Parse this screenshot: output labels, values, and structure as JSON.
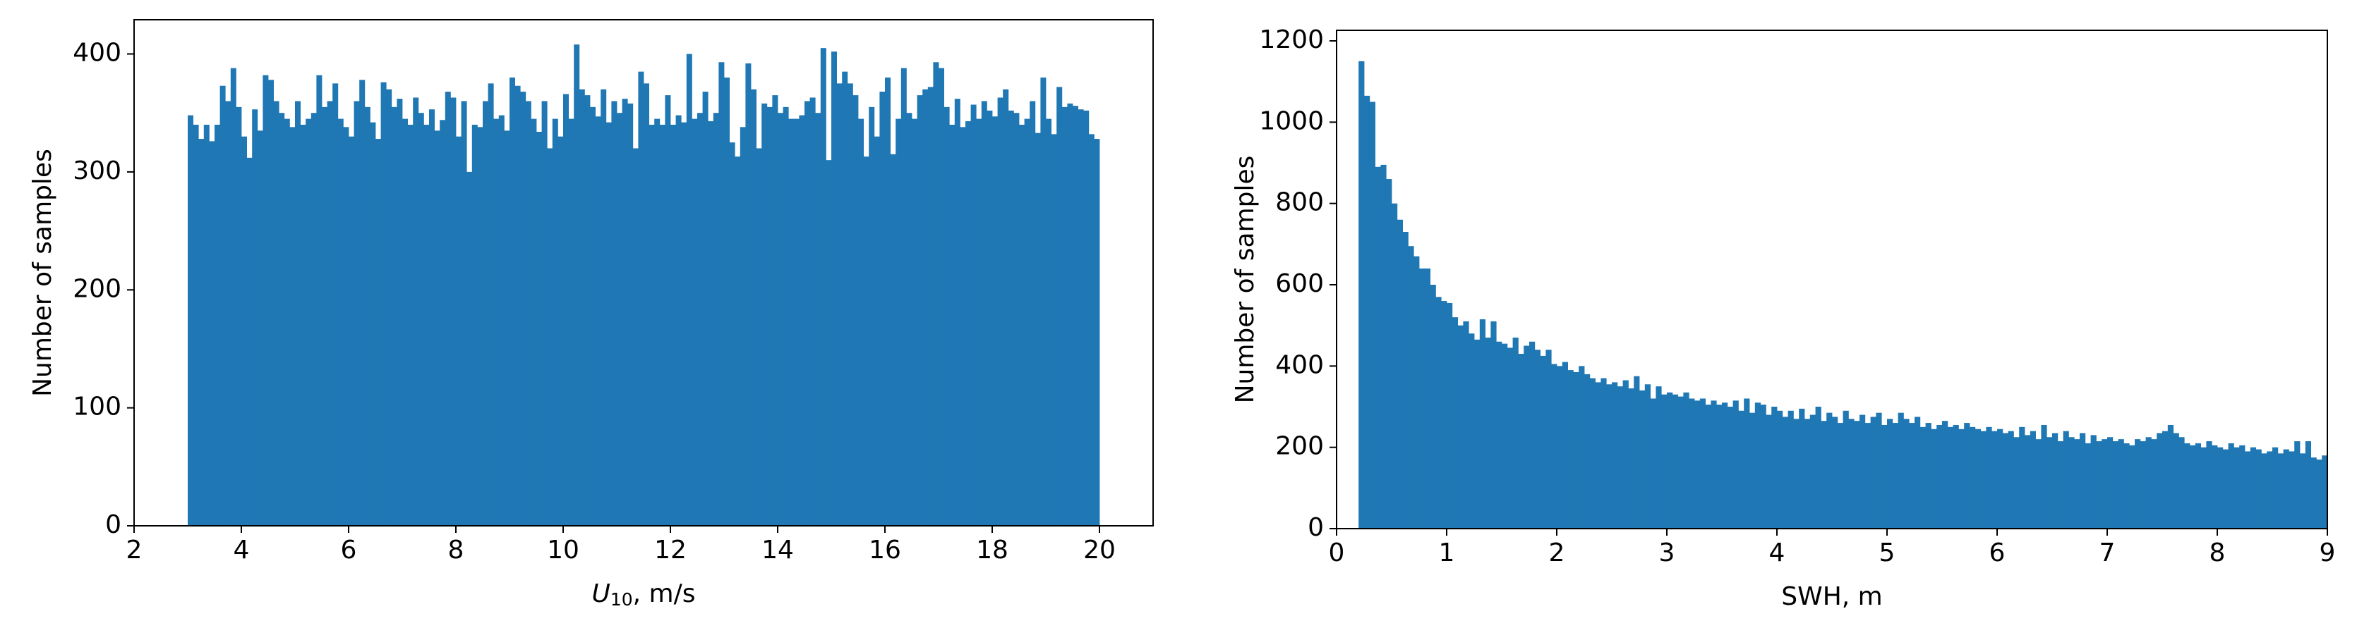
{
  "chart_data": [
    {
      "type": "histogram",
      "xlabel": [
        "U",
        "10",
        ", m/s"
      ],
      "ylabel": "Number of samples",
      "color": "#1f77b4",
      "xlim": [
        2,
        21
      ],
      "ylim": [
        0,
        429
      ],
      "xticks": [
        2,
        4,
        6,
        8,
        10,
        12,
        14,
        16,
        18,
        20
      ],
      "yticks": [
        0,
        100,
        200,
        300,
        400
      ],
      "bins": [
        3,
        3.1,
        3.2,
        3.3,
        3.4,
        3.5,
        3.6,
        3.7,
        3.8,
        3.9,
        4,
        4.1,
        4.2,
        4.3,
        4.4,
        4.5,
        4.6,
        4.7,
        4.8,
        4.9,
        5,
        5.1,
        5.2,
        5.3,
        5.4,
        5.5,
        5.6,
        5.7,
        5.8,
        5.9,
        6,
        6.1,
        6.2,
        6.3,
        6.4,
        6.5,
        6.6,
        6.7,
        6.8,
        6.9,
        7,
        7.1,
        7.2,
        7.3,
        7.4,
        7.5,
        7.6,
        7.7,
        7.8,
        7.9,
        8,
        8.1,
        8.2,
        8.3,
        8.4,
        8.5,
        8.6,
        8.7,
        8.8,
        8.9,
        9,
        9.1,
        9.2,
        9.3,
        9.4,
        9.5,
        9.6,
        9.7,
        9.8,
        9.9,
        10,
        10.1,
        10.2,
        10.3,
        10.4,
        10.5,
        10.6,
        10.7,
        10.8,
        10.9,
        11,
        11.1,
        11.2,
        11.3,
        11.4,
        11.5,
        11.6,
        11.7,
        11.8,
        11.9,
        12,
        12.1,
        12.2,
        12.3,
        12.4,
        12.5,
        12.6,
        12.7,
        12.8,
        12.9,
        13,
        13.1,
        13.2,
        13.3,
        13.4,
        13.5,
        13.6,
        13.7,
        13.8,
        13.9,
        14,
        14.1,
        14.2,
        14.3,
        14.4,
        14.5,
        14.6,
        14.7,
        14.8,
        14.9,
        15,
        15.1,
        15.2,
        15.3,
        15.4,
        15.5,
        15.6,
        15.7,
        15.8,
        15.9,
        16,
        16.1,
        16.2,
        16.3,
        16.4,
        16.5,
        16.6,
        16.7,
        16.8,
        16.9,
        17,
        17.1,
        17.2,
        17.3,
        17.4,
        17.5,
        17.6,
        17.7,
        17.8,
        17.9,
        18,
        18.1,
        18.2,
        18.3,
        18.4,
        18.5,
        18.6,
        18.7,
        18.8,
        18.9,
        19,
        19.1,
        19.2,
        19.3,
        19.4,
        19.5,
        19.6,
        19.7,
        19.8,
        19.9,
        20
      ],
      "values": [
        348,
        340,
        328,
        340,
        326,
        340,
        373,
        360,
        388,
        355,
        330,
        312,
        353,
        335,
        382,
        378,
        360,
        350,
        345,
        338,
        360,
        340,
        345,
        350,
        382,
        355,
        360,
        375,
        345,
        338,
        330,
        360,
        378,
        355,
        342,
        328,
        376,
        370,
        355,
        362,
        345,
        340,
        363,
        350,
        340,
        353,
        335,
        344,
        368,
        363,
        330,
        360,
        300,
        340,
        338,
        360,
        375,
        345,
        348,
        335,
        380,
        373,
        368,
        360,
        345,
        334,
        360,
        320,
        345,
        330,
        366,
        345,
        408,
        370,
        365,
        355,
        347,
        370,
        342,
        360,
        350,
        362,
        358,
        320,
        385,
        375,
        340,
        345,
        340,
        365,
        340,
        348,
        342,
        400,
        345,
        350,
        368,
        343,
        350,
        393,
        380,
        325,
        313,
        338,
        392,
        370,
        320,
        358,
        355,
        365,
        350,
        355,
        345,
        345,
        348,
        360,
        363,
        350,
        405,
        310,
        402,
        375,
        385,
        375,
        365,
        345,
        313,
        355,
        330,
        368,
        380,
        315,
        345,
        388,
        350,
        345,
        365,
        370,
        372,
        393,
        388,
        355,
        340,
        362,
        338,
        343,
        357,
        345,
        360,
        352,
        347,
        363,
        370,
        352,
        350,
        340,
        345,
        360,
        333,
        380,
        345,
        332,
        372,
        355,
        358,
        356,
        353,
        352,
        332,
        328
      ]
    },
    {
      "type": "histogram",
      "xlabel": [
        "SWH, m"
      ],
      "ylabel": "Number of samples",
      "color": "#1f77b4",
      "xlim": [
        0,
        9
      ],
      "ylim": [
        0,
        1226
      ],
      "xticks": [
        0,
        1,
        2,
        3,
        4,
        5,
        6,
        7,
        8,
        9
      ],
      "yticks": [
        0,
        200,
        400,
        600,
        800,
        1000,
        1200
      ],
      "bins": [
        0.2,
        0.25,
        0.3,
        0.35,
        0.4,
        0.45,
        0.5,
        0.55,
        0.6,
        0.65,
        0.7,
        0.75,
        0.8,
        0.85,
        0.9,
        0.95,
        1,
        1.05,
        1.1,
        1.15,
        1.2,
        1.25,
        1.3,
        1.35,
        1.4,
        1.45,
        1.5,
        1.55,
        1.6,
        1.65,
        1.7,
        1.75,
        1.8,
        1.85,
        1.9,
        1.95,
        2,
        2.05,
        2.1,
        2.15,
        2.2,
        2.25,
        2.3,
        2.35,
        2.4,
        2.45,
        2.5,
        2.55,
        2.6,
        2.65,
        2.7,
        2.75,
        2.8,
        2.85,
        2.9,
        2.95,
        3,
        3.05,
        3.1,
        3.15,
        3.2,
        3.25,
        3.3,
        3.35,
        3.4,
        3.45,
        3.5,
        3.55,
        3.6,
        3.65,
        3.7,
        3.75,
        3.8,
        3.85,
        3.9,
        3.95,
        4,
        4.05,
        4.1,
        4.15,
        4.2,
        4.25,
        4.3,
        4.35,
        4.4,
        4.45,
        4.5,
        4.55,
        4.6,
        4.65,
        4.7,
        4.75,
        4.8,
        4.85,
        4.9,
        4.95,
        5,
        5.05,
        5.1,
        5.15,
        5.2,
        5.25,
        5.3,
        5.35,
        5.4,
        5.45,
        5.5,
        5.55,
        5.6,
        5.65,
        5.7,
        5.75,
        5.8,
        5.85,
        5.9,
        5.95,
        6,
        6.05,
        6.1,
        6.15,
        6.2,
        6.25,
        6.3,
        6.35,
        6.4,
        6.45,
        6.5,
        6.55,
        6.6,
        6.65,
        6.7,
        6.75,
        6.8,
        6.85,
        6.9,
        6.95,
        7,
        7.05,
        7.1,
        7.15,
        7.2,
        7.25,
        7.3,
        7.35,
        7.4,
        7.45,
        7.5,
        7.55,
        7.6,
        7.65,
        7.7,
        7.75,
        7.8,
        7.85,
        7.9,
        7.95,
        8,
        8.05,
        8.1,
        8.15,
        8.2,
        8.25,
        8.3,
        8.35,
        8.4,
        8.45,
        8.5,
        8.55,
        8.6,
        8.65,
        8.7,
        8.75,
        8.8,
        8.85,
        8.9,
        8.95,
        9
      ],
      "values": [
        1150,
        1065,
        1050,
        890,
        895,
        860,
        800,
        760,
        730,
        695,
        670,
        640,
        640,
        600,
        570,
        560,
        555,
        520,
        500,
        510,
        480,
        465,
        515,
        470,
        510,
        460,
        455,
        445,
        470,
        430,
        450,
        460,
        440,
        425,
        440,
        405,
        400,
        410,
        390,
        385,
        400,
        380,
        370,
        360,
        370,
        355,
        360,
        350,
        365,
        345,
        375,
        340,
        355,
        320,
        350,
        330,
        335,
        330,
        325,
        335,
        320,
        315,
        320,
        305,
        315,
        305,
        310,
        300,
        315,
        290,
        320,
        285,
        310,
        305,
        280,
        300,
        290,
        275,
        290,
        270,
        295,
        270,
        280,
        300,
        265,
        285,
        275,
        260,
        290,
        270,
        265,
        280,
        260,
        275,
        285,
        255,
        270,
        260,
        285,
        270,
        260,
        275,
        250,
        260,
        245,
        255,
        265,
        250,
        255,
        245,
        260,
        250,
        245,
        240,
        250,
        240,
        245,
        235,
        240,
        225,
        250,
        230,
        240,
        220,
        255,
        225,
        235,
        215,
        240,
        225,
        220,
        235,
        210,
        230,
        215,
        220,
        225,
        215,
        220,
        210,
        205,
        220,
        215,
        225,
        220,
        235,
        240,
        255,
        235,
        225,
        210,
        205,
        210,
        200,
        215,
        205,
        200,
        195,
        210,
        200,
        205,
        190,
        200,
        195,
        185,
        190,
        200,
        185,
        195,
        190,
        215,
        185,
        215,
        175,
        170,
        180
      ]
    }
  ]
}
